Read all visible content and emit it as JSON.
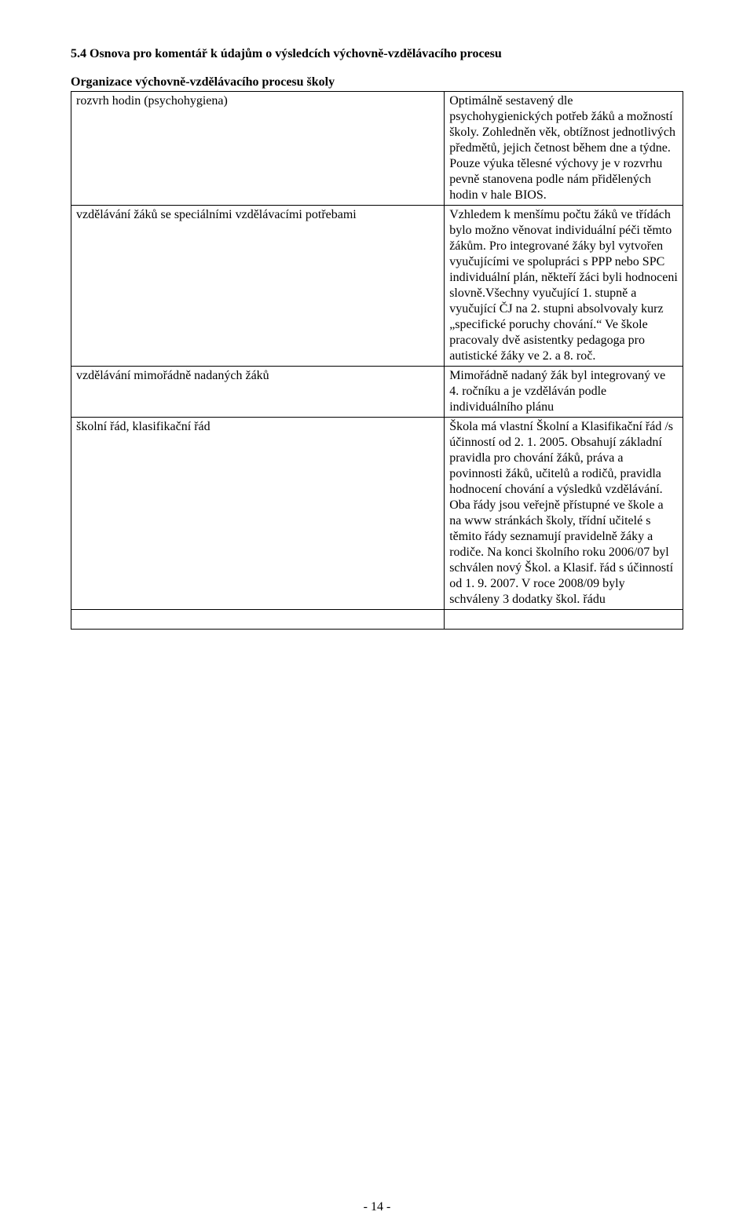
{
  "heading": "5.4 Osnova pro komentář k údajům o výsledcích výchovně-vzdělávacího procesu",
  "subheading": "Organizace výchovně-vzdělávacího procesu školy",
  "rows": [
    {
      "left": "rozvrh hodin (psychohygiena)",
      "right": "Optimálně sestavený dle psychohygienických potřeb žáků a možností školy. Zohledněn věk, obtížnost jednotlivých předmětů, jejich četnost během dne a týdne. Pouze výuka tělesné výchovy je v rozvrhu pevně stanovena podle nám přidělených hodin v hale BIOS."
    },
    {
      "left": "vzdělávání žáků se speciálními vzdělávacími potřebami",
      "right": "Vzhledem k menšímu počtu žáků ve třídách bylo možno věnovat individuální péči těmto žákům. Pro integrované žáky byl vytvořen vyučujícími ve spolupráci s PPP nebo SPC individuální plán, někteří žáci byli hodnoceni slovně.Všechny vyučující 1. stupně a vyučující ČJ na 2. stupni absolvovaly kurz „specifické poruchy chování.“ Ve škole pracovaly dvě asistentky pedagoga pro autistické žáky ve 2. a 8. roč."
    },
    {
      "left": "vzdělávání mimořádně nadaných žáků",
      "right": "Mimořádně nadaný žák byl integrovaný ve 4. ročníku a je vzděláván podle individuálního plánu"
    },
    {
      "left": "školní řád, klasifikační řád",
      "right": "Škola má vlastní Školní a Klasifikační řád /s účinností od 2. 1. 2005. Obsahují základní pravidla pro chování žáků, práva a povinnosti žáků, učitelů a rodičů, pravidla hodnocení chování a výsledků vzdělávání. Oba řády jsou veřejně přístupné ve škole a na www stránkách školy, třídní učitelé s těmito řády seznamují pravidelně žáky a rodiče. Na konci školního roku 2006/07 byl schválen nový Škol. a Klasif. řád s účinností od 1. 9. 2007. V roce 2008/09 byly schváleny 3 dodatky škol. řádu"
    }
  ],
  "pageNumber": "- 14 -"
}
